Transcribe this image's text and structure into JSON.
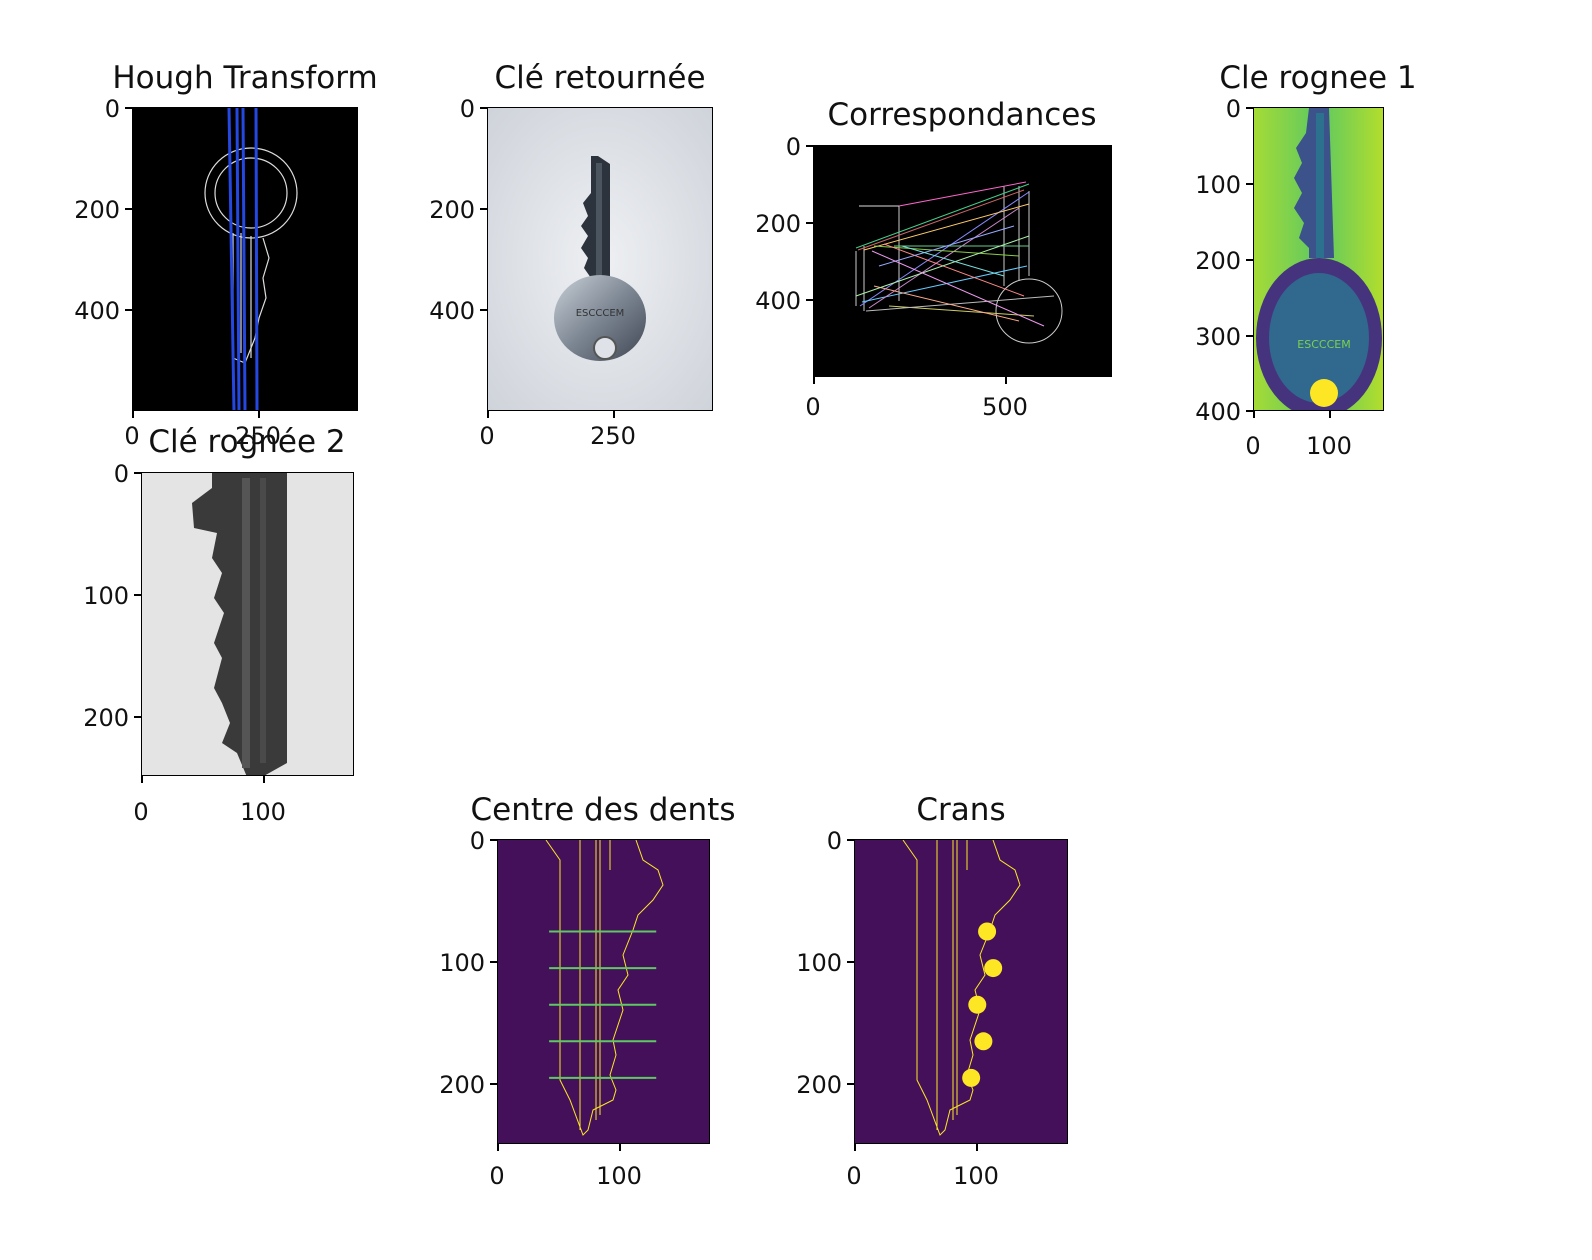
{
  "figure": {
    "panels": [
      {
        "id": "hough",
        "title": "Hough Transform",
        "yticks": [
          "0",
          "200",
          "400"
        ],
        "xticks": [
          "0",
          "250"
        ]
      },
      {
        "id": "retournee",
        "title": "Clé retournée",
        "yticks": [
          "0",
          "200",
          "400"
        ],
        "xticks": [
          "0",
          "250"
        ]
      },
      {
        "id": "corr",
        "title": "Correspondances",
        "yticks": [
          "0",
          "200",
          "400"
        ],
        "xticks": [
          "0",
          "500"
        ]
      },
      {
        "id": "rognee1",
        "title": "Cle rognee 1",
        "yticks": [
          "0",
          "100",
          "200",
          "300",
          "400"
        ],
        "xticks": [
          "0",
          "100"
        ]
      },
      {
        "id": "rognee2",
        "title": "Clé rognée 2",
        "yticks": [
          "0",
          "100",
          "200"
        ],
        "xticks": [
          "0",
          "100"
        ]
      },
      {
        "id": "centre",
        "title": "Centre des dents",
        "yticks": [
          "0",
          "100",
          "200"
        ],
        "xticks": [
          "0",
          "100"
        ]
      },
      {
        "id": "crans",
        "title": "Crans",
        "yticks": [
          "0",
          "100",
          "200"
        ],
        "xticks": [
          "0",
          "100"
        ]
      }
    ],
    "key_text": "ESCCCEM",
    "colors": {
      "viridis_dark": "#44105a",
      "viridis_yellow": "#fde725",
      "hough_line": "#2448e0",
      "viridis_green": "#9ad441"
    }
  },
  "chart_data": [
    {
      "type": "heatmap",
      "title": "Hough Transform",
      "x_ticks": [
        0,
        250
      ],
      "y_ticks": [
        0,
        200,
        400
      ],
      "xlim": [
        0,
        440
      ],
      "ylim": [
        590,
        0
      ],
      "lines_x": [
        205,
        210,
        215,
        240
      ],
      "description_series": []
    },
    {
      "type": "heatmap",
      "title": "Clé retournée",
      "x_ticks": [
        0,
        250
      ],
      "y_ticks": [
        0,
        200,
        400
      ],
      "xlim": [
        0,
        440
      ],
      "ylim": [
        590,
        0
      ]
    },
    {
      "type": "heatmap",
      "title": "Correspondances",
      "x_ticks": [
        0,
        500
      ],
      "y_ticks": [
        0,
        200,
        400
      ],
      "xlim": [
        0,
        775
      ],
      "ylim": [
        600,
        0
      ]
    },
    {
      "type": "heatmap",
      "title": "Cle rognee 1",
      "x_ticks": [
        0,
        100
      ],
      "y_ticks": [
        0,
        100,
        200,
        300,
        400
      ],
      "xlim": [
        0,
        175
      ],
      "ylim": [
        400,
        0
      ]
    },
    {
      "type": "heatmap",
      "title": "Clé rognée 2",
      "x_ticks": [
        0,
        100
      ],
      "y_ticks": [
        0,
        100,
        200
      ],
      "xlim": [
        0,
        175
      ],
      "ylim": [
        250,
        0
      ]
    },
    {
      "type": "heatmap",
      "title": "Centre des dents",
      "x_ticks": [
        0,
        100
      ],
      "y_ticks": [
        0,
        100,
        200
      ],
      "xlim": [
        0,
        175
      ],
      "ylim": [
        250,
        0
      ],
      "horizontal_lines_y": [
        75,
        105,
        135,
        165,
        195
      ]
    },
    {
      "type": "heatmap",
      "title": "Crans",
      "x_ticks": [
        0,
        100
      ],
      "y_ticks": [
        0,
        100,
        200
      ],
      "xlim": [
        0,
        175
      ],
      "ylim": [
        250,
        0
      ],
      "notch_points": [
        {
          "x": 108,
          "y": 75
        },
        {
          "x": 113,
          "y": 105
        },
        {
          "x": 100,
          "y": 135
        },
        {
          "x": 105,
          "y": 165
        },
        {
          "x": 95,
          "y": 195
        }
      ]
    }
  ]
}
